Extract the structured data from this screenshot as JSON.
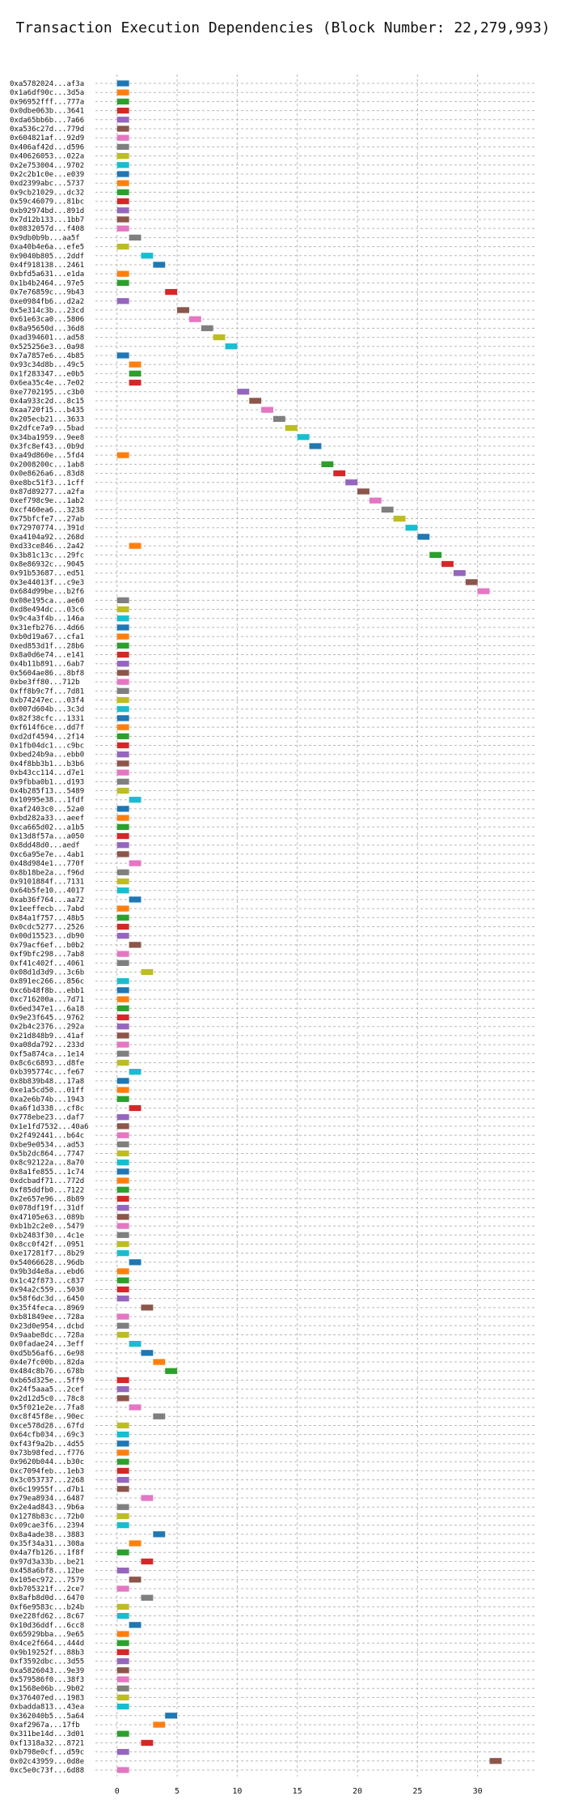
{
  "chart_data": {
    "type": "bar",
    "orientation": "horizontal",
    "title": "Transaction Execution Dependencies (Block Number: 22,279,993)",
    "xlabel": "",
    "ylabel": "",
    "xlim": [
      -1.8,
      34.8
    ],
    "xticks": [
      0,
      5,
      10,
      15,
      20,
      25,
      30
    ],
    "grid": true,
    "colors": [
      "#1f77b4",
      "#ff7f0e",
      "#2ca02c",
      "#d62728",
      "#9467bd",
      "#8c564b",
      "#e377c2",
      "#7f7f7f",
      "#bcbd22",
      "#17becf"
    ],
    "bars": [
      {
        "label": "0xa5782024...af3a",
        "start": 0,
        "end": 1
      },
      {
        "label": "0x1a6df90c...3d5a",
        "start": 0,
        "end": 1
      },
      {
        "label": "0x96952fff...777a",
        "start": 0,
        "end": 1
      },
      {
        "label": "0x0dbe063b...3641",
        "start": 0,
        "end": 1
      },
      {
        "label": "0xda65bb6b...7a66",
        "start": 0,
        "end": 1
      },
      {
        "label": "0xa536c27d...779d",
        "start": 0,
        "end": 1
      },
      {
        "label": "0x604821af...92d9",
        "start": 0,
        "end": 1
      },
      {
        "label": "0x406af42d...d596",
        "start": 0,
        "end": 1
      },
      {
        "label": "0x40626053...022a",
        "start": 0,
        "end": 1
      },
      {
        "label": "0x2e753004...9702",
        "start": 0,
        "end": 1
      },
      {
        "label": "0x2c2b1c0e...e039",
        "start": 0,
        "end": 1
      },
      {
        "label": "0xd2399abc...5737",
        "start": 0,
        "end": 1
      },
      {
        "label": "0x9cb21029...dc32",
        "start": 0,
        "end": 1
      },
      {
        "label": "0x59c46079...81bc",
        "start": 0,
        "end": 1
      },
      {
        "label": "0xb92974bd...891d",
        "start": 0,
        "end": 1
      },
      {
        "label": "0x7d12b133...1bb7",
        "start": 0,
        "end": 1
      },
      {
        "label": "0x0832057d...f408",
        "start": 0,
        "end": 1
      },
      {
        "label": "0x9db0b9b...aa5f",
        "start": 1,
        "end": 2
      },
      {
        "label": "0xa40b4e6a...efe5",
        "start": 0,
        "end": 1
      },
      {
        "label": "0x9040b805...2ddf",
        "start": 2,
        "end": 3
      },
      {
        "label": "0x4f918138...2461",
        "start": 3,
        "end": 4
      },
      {
        "label": "0xbfd5a631...e1da",
        "start": 0,
        "end": 1
      },
      {
        "label": "0x1b4b2464...97e5",
        "start": 0,
        "end": 1
      },
      {
        "label": "0x7e76859c...9b43",
        "start": 4,
        "end": 5
      },
      {
        "label": "0xe0984fb6...d2a2",
        "start": 0,
        "end": 1
      },
      {
        "label": "0x5e314c3b...23cd",
        "start": 5,
        "end": 6
      },
      {
        "label": "0x61e63ca0...5806",
        "start": 6,
        "end": 7
      },
      {
        "label": "0x8a95650d...36d8",
        "start": 7,
        "end": 8
      },
      {
        "label": "0xad394601...ad58",
        "start": 8,
        "end": 9
      },
      {
        "label": "0x525256e3...0a98",
        "start": 9,
        "end": 10
      },
      {
        "label": "0x7a7857e6...4b85",
        "start": 0,
        "end": 1
      },
      {
        "label": "0x93c34d8b...49c5",
        "start": 1,
        "end": 2
      },
      {
        "label": "0x1f283347...e0b5",
        "start": 1,
        "end": 2
      },
      {
        "label": "0x6ea35c4e...7e02",
        "start": 1,
        "end": 2
      },
      {
        "label": "0xe7702195...c3b0",
        "start": 10,
        "end": 11
      },
      {
        "label": "0x4a933c2d...8c15",
        "start": 11,
        "end": 12
      },
      {
        "label": "0xaa720f15...b435",
        "start": 12,
        "end": 13
      },
      {
        "label": "0x205ecb21...3633",
        "start": 13,
        "end": 14
      },
      {
        "label": "0x2dfce7a9...5bad",
        "start": 14,
        "end": 15
      },
      {
        "label": "0x34ba1959...9ee8",
        "start": 15,
        "end": 16
      },
      {
        "label": "0x3fc8ef43...0b9d",
        "start": 16,
        "end": 17
      },
      {
        "label": "0xa49d860e...5fd4",
        "start": 0,
        "end": 1
      },
      {
        "label": "0x2008200c...1ab8",
        "start": 17,
        "end": 18
      },
      {
        "label": "0x0e8626a6...83d8",
        "start": 18,
        "end": 19
      },
      {
        "label": "0xe8bc51f3...1cff",
        "start": 19,
        "end": 20
      },
      {
        "label": "0x87d89277...a2fa",
        "start": 20,
        "end": 21
      },
      {
        "label": "0xef798c9e...1ab2",
        "start": 21,
        "end": 22
      },
      {
        "label": "0xcf460ea6...3238",
        "start": 22,
        "end": 23
      },
      {
        "label": "0x75bfcfe7...27ab",
        "start": 23,
        "end": 24
      },
      {
        "label": "0x72970774...391d",
        "start": 24,
        "end": 25
      },
      {
        "label": "0xa4104a92...268d",
        "start": 25,
        "end": 26
      },
      {
        "label": "0xd33ce846...2a42",
        "start": 1,
        "end": 2
      },
      {
        "label": "0x3b81c13c...29fc",
        "start": 26,
        "end": 27
      },
      {
        "label": "0x8e86932c...9045",
        "start": 27,
        "end": 28
      },
      {
        "label": "0x91b53687...ed51",
        "start": 28,
        "end": 29
      },
      {
        "label": "0x3e44013f...c9e3",
        "start": 29,
        "end": 30
      },
      {
        "label": "0x684d99be...b2f6",
        "start": 30,
        "end": 31
      },
      {
        "label": "0x08e195ca...ae60",
        "start": 0,
        "end": 1
      },
      {
        "label": "0xd8e494dc...03c6",
        "start": 0,
        "end": 1
      },
      {
        "label": "0x9c4a3f4b...146a",
        "start": 0,
        "end": 1
      },
      {
        "label": "0x31efb276...4d66",
        "start": 0,
        "end": 1
      },
      {
        "label": "0xb0d19a67...cfa1",
        "start": 0,
        "end": 1
      },
      {
        "label": "0xed853d1f...28b6",
        "start": 0,
        "end": 1
      },
      {
        "label": "0x8a0d6e74...e141",
        "start": 0,
        "end": 1
      },
      {
        "label": "0x4b11b891...6ab7",
        "start": 0,
        "end": 1
      },
      {
        "label": "0x5604ae86...8bf8",
        "start": 0,
        "end": 1
      },
      {
        "label": "0xbe3ff80...712b",
        "start": 0,
        "end": 1
      },
      {
        "label": "0xff8b9c7f...7d81",
        "start": 0,
        "end": 1
      },
      {
        "label": "0xb74247ec...03f4",
        "start": 0,
        "end": 1
      },
      {
        "label": "0x007d604b...3c3d",
        "start": 0,
        "end": 1
      },
      {
        "label": "0x82f38cfc...1331",
        "start": 0,
        "end": 1
      },
      {
        "label": "0xf614f6ce...dd7f",
        "start": 0,
        "end": 1
      },
      {
        "label": "0xd2df4594...2f14",
        "start": 0,
        "end": 1
      },
      {
        "label": "0x1fb04dc1...c9bc",
        "start": 0,
        "end": 1
      },
      {
        "label": "0xbed24b9a...ebb0",
        "start": 0,
        "end": 1
      },
      {
        "label": "0x4f8bb3b1...b3b6",
        "start": 0,
        "end": 1
      },
      {
        "label": "0xb43cc114...d7e1",
        "start": 0,
        "end": 1
      },
      {
        "label": "0x9fbba0b1...d193",
        "start": 0,
        "end": 1
      },
      {
        "label": "0x4b285f13...5489",
        "start": 0,
        "end": 1
      },
      {
        "label": "0x10995e38...1fdf",
        "start": 1,
        "end": 2
      },
      {
        "label": "0xaf2403c0...52a0",
        "start": 0,
        "end": 1
      },
      {
        "label": "0xbd282a33...aeef",
        "start": 0,
        "end": 1
      },
      {
        "label": "0xca665d02...a1b5",
        "start": 0,
        "end": 1
      },
      {
        "label": "0x13d8f57a...a050",
        "start": 0,
        "end": 1
      },
      {
        "label": "0x8dd48d0...aedf",
        "start": 0,
        "end": 1
      },
      {
        "label": "0xc6a95e7e...4ab1",
        "start": 0,
        "end": 1
      },
      {
        "label": "0x48d984e1...770f",
        "start": 1,
        "end": 2
      },
      {
        "label": "0x8b18be2a...f96d",
        "start": 0,
        "end": 1
      },
      {
        "label": "0x9101884f...7131",
        "start": 0,
        "end": 1
      },
      {
        "label": "0x64b5fe10...4017",
        "start": 0,
        "end": 1
      },
      {
        "label": "0xab36f764...aa72",
        "start": 1,
        "end": 2
      },
      {
        "label": "0x1eeffecb...7abd",
        "start": 0,
        "end": 1
      },
      {
        "label": "0x84a1f757...48b5",
        "start": 0,
        "end": 1
      },
      {
        "label": "0x0cdc5277...2526",
        "start": 0,
        "end": 1
      },
      {
        "label": "0x00d15523...db90",
        "start": 0,
        "end": 1
      },
      {
        "label": "0x79acf6ef...b0b2",
        "start": 1,
        "end": 2
      },
      {
        "label": "0xf9bfc298...7ab8",
        "start": 0,
        "end": 1
      },
      {
        "label": "0xf41c402f...4061",
        "start": 0,
        "end": 1
      },
      {
        "label": "0x08d1d3d9...3c6b",
        "start": 2,
        "end": 3
      },
      {
        "label": "0x891ec266...856c",
        "start": 0,
        "end": 1
      },
      {
        "label": "0xc6b48f8b...ebb1",
        "start": 0,
        "end": 1
      },
      {
        "label": "0xc716200a...7d71",
        "start": 0,
        "end": 1
      },
      {
        "label": "0x6ed347e1...6a18",
        "start": 0,
        "end": 1
      },
      {
        "label": "0x9e23f645...9762",
        "start": 0,
        "end": 1
      },
      {
        "label": "0x2b4c2376...292a",
        "start": 0,
        "end": 1
      },
      {
        "label": "0x21d848b9...41af",
        "start": 0,
        "end": 1
      },
      {
        "label": "0xa08da792...233d",
        "start": 0,
        "end": 1
      },
      {
        "label": "0xf5a874ca...1e14",
        "start": 0,
        "end": 1
      },
      {
        "label": "0x8c6c6893...d8fe",
        "start": 0,
        "end": 1
      },
      {
        "label": "0xb395774c...fe67",
        "start": 1,
        "end": 2
      },
      {
        "label": "0x8b839b48...17a8",
        "start": 0,
        "end": 1
      },
      {
        "label": "0xe1a5cd50...01ff",
        "start": 0,
        "end": 1
      },
      {
        "label": "0xa2e6b74b...1943",
        "start": 0,
        "end": 1
      },
      {
        "label": "0xa6f1d338...cf8c",
        "start": 1,
        "end": 2
      },
      {
        "label": "0x778ebe23...daf7",
        "start": 0,
        "end": 1
      },
      {
        "label": "0x1e1fd7532...40a6",
        "start": 0,
        "end": 1
      },
      {
        "label": "0x2f492441...b64c",
        "start": 0,
        "end": 1
      },
      {
        "label": "0xbe9e0534...ad53",
        "start": 0,
        "end": 1
      },
      {
        "label": "0x5b2dc864...7747",
        "start": 0,
        "end": 1
      },
      {
        "label": "0x8c92122a...8a70",
        "start": 0,
        "end": 1
      },
      {
        "label": "0x8a1fe855...1c74",
        "start": 0,
        "end": 1
      },
      {
        "label": "0xdcbadf71...772d",
        "start": 0,
        "end": 1
      },
      {
        "label": "0xf85ddfb0...7122",
        "start": 0,
        "end": 1
      },
      {
        "label": "0x2e657e96...8b89",
        "start": 0,
        "end": 1
      },
      {
        "label": "0x078df19f...31df",
        "start": 0,
        "end": 1
      },
      {
        "label": "0x47105e63...089b",
        "start": 0,
        "end": 1
      },
      {
        "label": "0xb1b2c2e0...5479",
        "start": 0,
        "end": 1
      },
      {
        "label": "0xb2483f30...4c1e",
        "start": 0,
        "end": 1
      },
      {
        "label": "0x8cc0f42f...0951",
        "start": 0,
        "end": 1
      },
      {
        "label": "0xe17281f7...8b29",
        "start": 0,
        "end": 1
      },
      {
        "label": "0x54066628...96db",
        "start": 1,
        "end": 2
      },
      {
        "label": "0x9b3d4e8a...ebd6",
        "start": 0,
        "end": 1
      },
      {
        "label": "0x1c42f873...c837",
        "start": 0,
        "end": 1
      },
      {
        "label": "0x94a2c559...5030",
        "start": 0,
        "end": 1
      },
      {
        "label": "0x58f6dc3d...6450",
        "start": 0,
        "end": 1
      },
      {
        "label": "0x35f4feca...8969",
        "start": 2,
        "end": 3
      },
      {
        "label": "0xb81849ee...728a",
        "start": 0,
        "end": 1
      },
      {
        "label": "0x23d0e954...dcbd",
        "start": 0,
        "end": 1
      },
      {
        "label": "0x9aabe8dc...728a",
        "start": 0,
        "end": 1
      },
      {
        "label": "0x0fadae24...3eff",
        "start": 1,
        "end": 2
      },
      {
        "label": "0xd5b56af6...6e98",
        "start": 2,
        "end": 3
      },
      {
        "label": "0x4e7fc00b...82da",
        "start": 3,
        "end": 4
      },
      {
        "label": "0x484c8b76...678b",
        "start": 4,
        "end": 5
      },
      {
        "label": "0xb65d325e...5ff9",
        "start": 0,
        "end": 1
      },
      {
        "label": "0x24f5aaa5...2cef",
        "start": 0,
        "end": 1
      },
      {
        "label": "0x2d12d5c0...78c8",
        "start": 0,
        "end": 1
      },
      {
        "label": "0x5f021e2e...7fa8",
        "start": 1,
        "end": 2
      },
      {
        "label": "0xc8f45f8e...90ec",
        "start": 3,
        "end": 4
      },
      {
        "label": "0xce578d28...67fd",
        "start": 0,
        "end": 1
      },
      {
        "label": "0x64cfb034...69c3",
        "start": 0,
        "end": 1
      },
      {
        "label": "0xf43f9a2b...4d55",
        "start": 0,
        "end": 1
      },
      {
        "label": "0x73b98fed...f776",
        "start": 0,
        "end": 1
      },
      {
        "label": "0x9620b044...b30c",
        "start": 0,
        "end": 1
      },
      {
        "label": "0xc7094feb...1eb3",
        "start": 0,
        "end": 1
      },
      {
        "label": "0x3c053737...2268",
        "start": 0,
        "end": 1
      },
      {
        "label": "0x6c19955f...d7b1",
        "start": 0,
        "end": 1
      },
      {
        "label": "0x79ea8934...6487",
        "start": 2,
        "end": 3
      },
      {
        "label": "0x2e4ad843...9b6a",
        "start": 0,
        "end": 1
      },
      {
        "label": "0x1278b83c...72b0",
        "start": 0,
        "end": 1
      },
      {
        "label": "0x09cae3f6...2394",
        "start": 0,
        "end": 1
      },
      {
        "label": "0x8a4ade38...3883",
        "start": 3,
        "end": 4
      },
      {
        "label": "0x35f34a31...308a",
        "start": 1,
        "end": 2
      },
      {
        "label": "0x4a7fb126...1f8f",
        "start": 0,
        "end": 1
      },
      {
        "label": "0x97d3a33b...be21",
        "start": 2,
        "end": 3
      },
      {
        "label": "0x458a6bf8...12be",
        "start": 0,
        "end": 1
      },
      {
        "label": "0x105ec972...7579",
        "start": 1,
        "end": 2
      },
      {
        "label": "0xb705321f...2ce7",
        "start": 0,
        "end": 1
      },
      {
        "label": "0x8afb8d0d...6470",
        "start": 2,
        "end": 3
      },
      {
        "label": "0xf6e9583c...b24b",
        "start": 0,
        "end": 1
      },
      {
        "label": "0xe228fd62...8c67",
        "start": 0,
        "end": 1
      },
      {
        "label": "0x10d36ddf...6cc8",
        "start": 1,
        "end": 2
      },
      {
        "label": "0x65929bba...9e65",
        "start": 0,
        "end": 1
      },
      {
        "label": "0x4ce2f664...444d",
        "start": 0,
        "end": 1
      },
      {
        "label": "0x9b19252f...88b3",
        "start": 0,
        "end": 1
      },
      {
        "label": "0xf3592dbc...3d55",
        "start": 0,
        "end": 1
      },
      {
        "label": "0xa5826043...9e39",
        "start": 0,
        "end": 1
      },
      {
        "label": "0x579586f0...38f3",
        "start": 0,
        "end": 1
      },
      {
        "label": "0x1568e06b...9b02",
        "start": 0,
        "end": 1
      },
      {
        "label": "0x376407ed...1983",
        "start": 0,
        "end": 1
      },
      {
        "label": "0xbadda813...43ea",
        "start": 0,
        "end": 1
      },
      {
        "label": "0x362040b5...5a64",
        "start": 4,
        "end": 5
      },
      {
        "label": "0xaf2967a...17fb",
        "start": 3,
        "end": 4
      },
      {
        "label": "0x311be14d...3d01",
        "start": 0,
        "end": 1
      },
      {
        "label": "0xf1318a32...8721",
        "start": 2,
        "end": 3
      },
      {
        "label": "0xb798e0cf...d59c",
        "start": 0,
        "end": 1
      },
      {
        "label": "0x02c43959...0d8e",
        "start": 31,
        "end": 32
      },
      {
        "label": "0xc5e0c73f...6d88",
        "start": 0,
        "end": 1
      }
    ]
  }
}
